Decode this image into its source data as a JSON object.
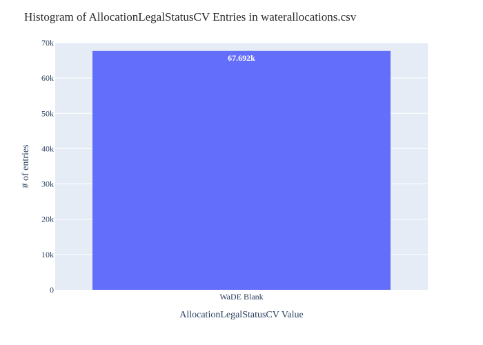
{
  "chart_data": {
    "type": "bar",
    "title": "Histogram of AllocationLegalStatusCV Entries in waterallocations.csv",
    "xlabel": "AllocationLegalStatusCV Value",
    "ylabel": "# of entries",
    "categories": [
      "WaDE Blank"
    ],
    "values": [
      67692
    ],
    "data_labels": [
      "67.692k"
    ],
    "ylim": [
      0,
      70000
    ],
    "yticks": [
      0,
      10000,
      20000,
      30000,
      40000,
      50000,
      60000,
      70000
    ],
    "ytick_labels": [
      "0",
      "10k",
      "20k",
      "30k",
      "40k",
      "50k",
      "60k",
      "70k"
    ],
    "grid": true,
    "legend": "none",
    "colors": {
      "bar": "#636efa",
      "plot_bg": "#e5ecf6",
      "grid": "#ffffff"
    }
  }
}
